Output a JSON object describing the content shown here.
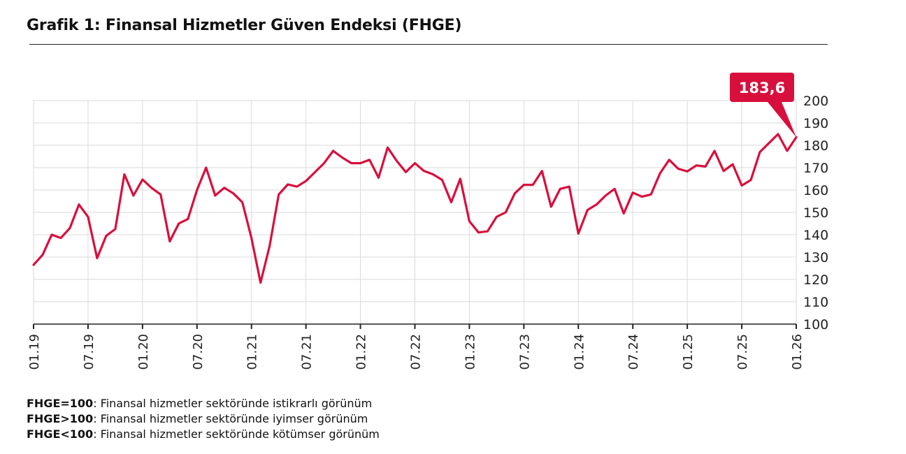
{
  "header": {
    "title": "Grafik 1: Finansal Hizmetler Güven Endeksi (FHGE)"
  },
  "chart_data": {
    "type": "line",
    "title": "Grafik 1: Finansal Hizmetler Güven Endeksi (FHGE)",
    "xlabel": "",
    "ylabel": "",
    "ylim": [
      100,
      200
    ],
    "y_ticks": [
      100,
      110,
      120,
      130,
      140,
      150,
      160,
      170,
      180,
      190,
      200
    ],
    "y_axis_side": "right",
    "grid": true,
    "x_tick_labels": [
      "01.19",
      "07.19",
      "01.20",
      "07.20",
      "01.21",
      "07.21",
      "01.22",
      "07.22",
      "01.23",
      "07.23",
      "01.24",
      "07.24",
      "01.25",
      "07.25",
      "01.26"
    ],
    "callout": {
      "label": "183,6",
      "value": 183.6,
      "x": "01.26"
    },
    "series": [
      {
        "color": "#d80f3c",
        "x": [
          "01.19",
          "02.19",
          "03.19",
          "04.19",
          "05.19",
          "06.19",
          "07.19",
          "08.19",
          "09.19",
          "10.19",
          "11.19",
          "12.19",
          "01.20",
          "02.20",
          "03.20",
          "04.20",
          "05.20",
          "06.20",
          "07.20",
          "08.20",
          "09.20",
          "10.20",
          "11.20",
          "12.20",
          "01.21",
          "02.21",
          "03.21",
          "04.21",
          "05.21",
          "06.21",
          "07.21",
          "08.21",
          "09.21",
          "10.21",
          "11.21",
          "12.21",
          "01.22",
          "02.22",
          "03.22",
          "04.22",
          "05.22",
          "06.22",
          "07.22",
          "08.22",
          "09.22",
          "10.22",
          "11.22",
          "12.22",
          "01.23",
          "02.23",
          "03.23",
          "04.23",
          "05.23",
          "06.23",
          "07.23",
          "08.23",
          "09.23",
          "10.23",
          "11.23",
          "12.23",
          "01.24",
          "02.24",
          "03.24",
          "04.24",
          "05.24",
          "06.24",
          "07.24",
          "08.24",
          "09.24",
          "10.24",
          "11.24",
          "12.24",
          "01.25",
          "02.25",
          "03.25",
          "04.25",
          "05.25",
          "06.25",
          "07.25",
          "08.25",
          "09.25",
          "10.25",
          "11.25",
          "12.25",
          "01.26"
        ],
        "values": [
          126.5,
          131,
          140,
          138.5,
          143,
          153.5,
          148,
          129.5,
          139.5,
          142.5,
          167,
          157.5,
          164.7,
          160.9,
          158,
          137,
          145,
          147,
          160,
          170,
          157.5,
          161,
          158.5,
          154.5,
          138.5,
          118.5,
          135,
          158,
          162.5,
          161.5,
          164,
          168,
          172,
          177.5,
          174.5,
          172,
          172,
          173.5,
          165.5,
          179,
          173,
          168,
          172,
          168.5,
          167,
          164.5,
          154.5,
          165,
          146,
          141,
          141.5,
          148,
          150,
          158.5,
          162.3,
          162.3,
          168.5,
          152.5,
          160.5,
          161.5,
          140.5,
          151,
          153.5,
          157.5,
          160.5,
          149.5,
          158.8,
          157,
          158,
          167.5,
          173.5,
          169.5,
          168.3,
          171,
          170.5,
          177.5,
          168.5,
          171.5,
          162,
          164.5,
          177,
          181,
          185,
          177.5,
          183.6
        ]
      }
    ]
  },
  "notes": [
    {
      "key": "FHGE=100",
      "text": ": Finansal hizmetler sektöründe istikrarlı görünüm"
    },
    {
      "key": "FHGE>100",
      "text": ": Finansal hizmetler sektöründe iyimser görünüm"
    },
    {
      "key": "FHGE<100",
      "text": ": Finansal hizmetler sektöründe kötümser görünüm"
    }
  ]
}
